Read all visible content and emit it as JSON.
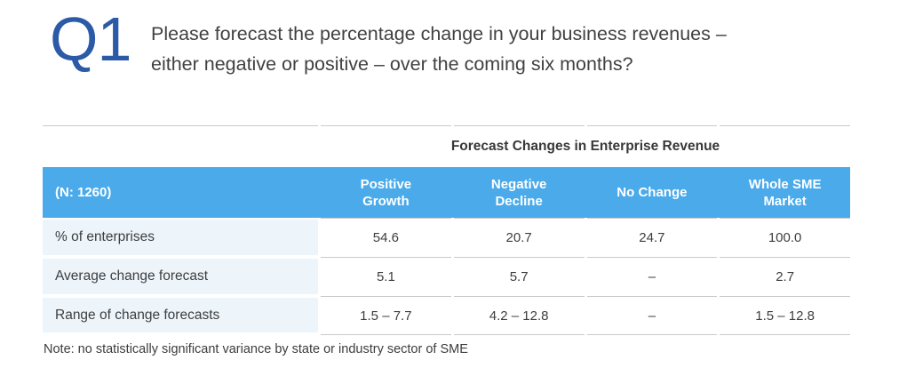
{
  "question": {
    "number": "Q1",
    "line1": "Please forecast the percentage change in your business revenues –",
    "line2": "either negative or positive – over the coming six months?"
  },
  "table": {
    "title": "Forecast Changes in Enterprise Revenue",
    "sample_label": "(N: 1260)",
    "columns": [
      "Positive\nGrowth",
      "Negative\nDecline",
      "No Change",
      "Whole SME\nMarket"
    ],
    "rows": [
      {
        "label": "% of enterprises",
        "values": [
          "54.6",
          "20.7",
          "24.7",
          "100.0"
        ]
      },
      {
        "label": "Average change forecast",
        "values": [
          "5.1",
          "5.7",
          "–",
          "2.7"
        ]
      },
      {
        "label": "Range of change forecasts",
        "values": [
          "1.5 – 7.7",
          "4.2 – 12.8",
          "–",
          "1.5 – 12.8"
        ]
      }
    ],
    "note": "Note: no statistically significant variance by state or industry sector of SME"
  },
  "colors": {
    "header_blue": "#4AAAEA",
    "row_label_blue": "#EDF5FB",
    "question_number_blue": "#2B5AA7",
    "text_dark": "#3E3E3E",
    "rule_gray": "#C9C9C9"
  }
}
